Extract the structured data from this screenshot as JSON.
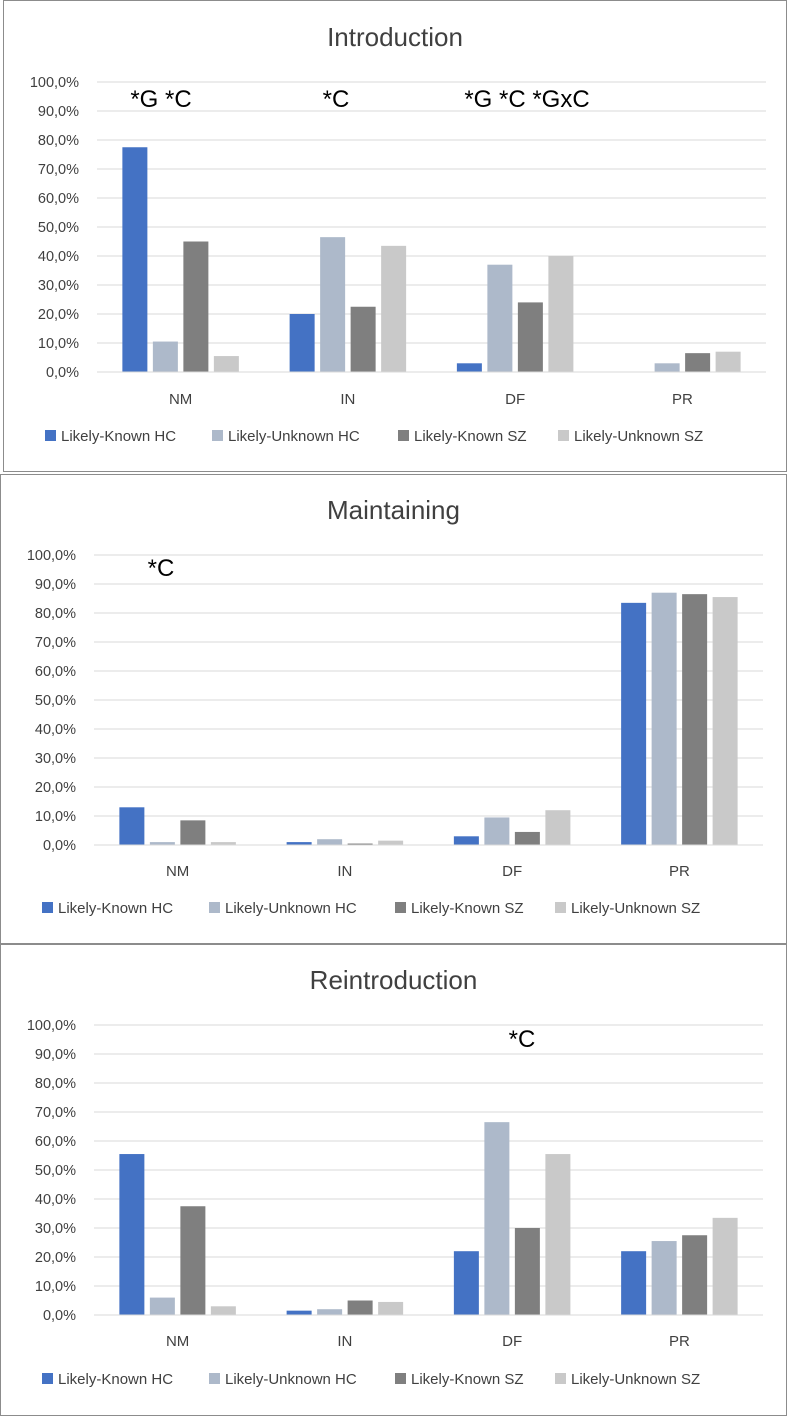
{
  "colors": {
    "known_hc": "#4472c4",
    "unknown_hc": "#adb9ca",
    "known_sz": "#7f7f7f",
    "unknown_sz": "#c9c9c9",
    "grid": "#d9d9d9",
    "text": "#404040"
  },
  "legend": [
    "Likely-Known HC",
    "Likely-Unknown HC",
    "Likely-Known SZ",
    "Likely-Unknown SZ"
  ],
  "chart_data": [
    {
      "type": "bar",
      "title": "Introduction",
      "categories": [
        "NM",
        "IN",
        "DF",
        "PR"
      ],
      "y_ticks": [
        "0,0%",
        "10,0%",
        "20,0%",
        "30,0%",
        "40,0%",
        "50,0%",
        "60,0%",
        "70,0%",
        "80,0%",
        "90,0%",
        "100,0%"
      ],
      "ylim": [
        0,
        100
      ],
      "grid": true,
      "legend_position": "bottom",
      "series": [
        {
          "name": "Likely-Known HC",
          "values": [
            77.5,
            20.0,
            3.0,
            0.0
          ]
        },
        {
          "name": "Likely-Unknown HC",
          "values": [
            10.5,
            46.5,
            37.0,
            3.0
          ]
        },
        {
          "name": "Likely-Known SZ",
          "values": [
            45.0,
            22.5,
            24.0,
            6.5
          ]
        },
        {
          "name": "Likely-Unknown SZ",
          "values": [
            5.5,
            43.5,
            40.0,
            7.0
          ]
        }
      ],
      "annotations": [
        "*G *C",
        "*C",
        "*G *C *GxC",
        ""
      ]
    },
    {
      "type": "bar",
      "title": "Maintaining",
      "categories": [
        "NM",
        "IN",
        "DF",
        "PR"
      ],
      "y_ticks": [
        "0,0%",
        "10,0%",
        "20,0%",
        "30,0%",
        "40,0%",
        "50,0%",
        "60,0%",
        "70,0%",
        "80,0%",
        "90,0%",
        "100,0%"
      ],
      "ylim": [
        0,
        100
      ],
      "grid": true,
      "legend_position": "bottom",
      "series": [
        {
          "name": "Likely-Known HC",
          "values": [
            13.0,
            1.0,
            3.0,
            83.5
          ]
        },
        {
          "name": "Likely-Unknown HC",
          "values": [
            1.0,
            2.0,
            9.5,
            87.0
          ]
        },
        {
          "name": "Likely-Known SZ",
          "values": [
            8.5,
            0.5,
            4.5,
            86.5
          ]
        },
        {
          "name": "Likely-Unknown SZ",
          "values": [
            1.0,
            1.5,
            12.0,
            85.5
          ]
        }
      ],
      "annotations": [
        "*C",
        "",
        "",
        ""
      ]
    },
    {
      "type": "bar",
      "title": "Reintroduction",
      "categories": [
        "NM",
        "IN",
        "DF",
        "PR"
      ],
      "y_ticks": [
        "0,0%",
        "10,0%",
        "20,0%",
        "30,0%",
        "40,0%",
        "50,0%",
        "60,0%",
        "70,0%",
        "80,0%",
        "90,0%",
        "100,0%"
      ],
      "ylim": [
        0,
        100
      ],
      "grid": true,
      "legend_position": "bottom",
      "series": [
        {
          "name": "Likely-Known HC",
          "values": [
            55.5,
            1.5,
            22.0,
            22.0
          ]
        },
        {
          "name": "Likely-Unknown HC",
          "values": [
            6.0,
            2.0,
            66.5,
            25.5
          ]
        },
        {
          "name": "Likely-Known SZ",
          "values": [
            37.5,
            5.0,
            30.0,
            27.5
          ]
        },
        {
          "name": "Likely-Unknown SZ",
          "values": [
            3.0,
            4.5,
            55.5,
            33.5
          ]
        }
      ],
      "annotations": [
        "",
        "",
        "*C",
        ""
      ]
    }
  ]
}
